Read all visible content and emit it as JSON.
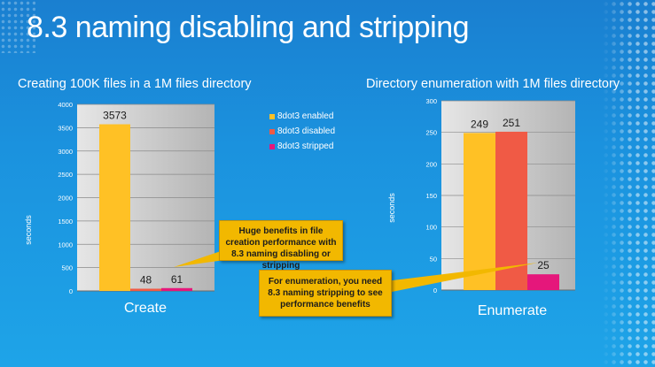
{
  "slide": {
    "title": "8.3 naming disabling and stripping",
    "left_subtitle": "Creating 100K files in a 1M files directory",
    "right_subtitle": "Directory enumeration with 1M files directory",
    "callout_create": "Huge benefits in file creation performance with 8.3 naming disabling or stripping",
    "callout_enumerate": "For enumeration, you need 8.3 naming stripping to see performance benefits"
  },
  "legend": [
    {
      "label": "8dot3 enabled",
      "color": "#ffc125"
    },
    {
      "label": "8dot3 disabled",
      "color": "#f05a45"
    },
    {
      "label": "8dot3 stripped",
      "color": "#e5177b"
    }
  ],
  "chart_data": [
    {
      "type": "bar",
      "categories": [
        "Create"
      ],
      "series": [
        {
          "name": "8dot3 enabled",
          "values": [
            3573
          ]
        },
        {
          "name": "8dot3 disabled",
          "values": [
            48
          ]
        },
        {
          "name": "8dot3 stripped",
          "values": [
            61
          ]
        }
      ],
      "title": "Creating 100K files in a 1M files directory",
      "xlabel": "",
      "ylabel": "seconds",
      "ylim": [
        0,
        4000
      ],
      "yticks": [
        0,
        500,
        1000,
        1500,
        2000,
        2500,
        3000,
        3500,
        4000
      ],
      "grid": true,
      "legend_position": "right"
    },
    {
      "type": "bar",
      "categories": [
        "Enumerate"
      ],
      "series": [
        {
          "name": "8dot3 enabled",
          "values": [
            249
          ]
        },
        {
          "name": "8dot3 disabled",
          "values": [
            251
          ]
        },
        {
          "name": "8dot3 stripped",
          "values": [
            25
          ]
        }
      ],
      "title": "Directory enumeration with 1M files directory",
      "xlabel": "",
      "ylabel": "seconds",
      "ylim": [
        0,
        300
      ],
      "yticks": [
        0,
        50,
        100,
        150,
        200,
        250,
        300
      ],
      "grid": true
    }
  ]
}
